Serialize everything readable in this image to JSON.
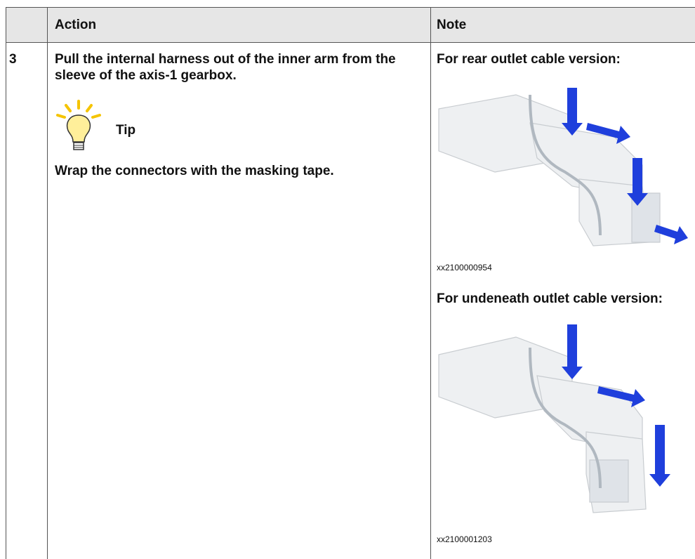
{
  "table": {
    "header": [
      "",
      "Action",
      "Note"
    ],
    "rows": [
      {
        "step": "3",
        "action": "Pull the internal harness out of the inner arm from the sleeve of the axis-1 gearbox.",
        "tip_title": "Tip",
        "tip_text": "Wrap the connectors with the masking tape.",
        "notes": [
          {
            "caption": "For rear outlet cable version:",
            "image_id": "xx2100000954"
          },
          {
            "caption": "For undeneath outlet cable version:",
            "image_id": "xx2100001203"
          }
        ]
      }
    ]
  }
}
